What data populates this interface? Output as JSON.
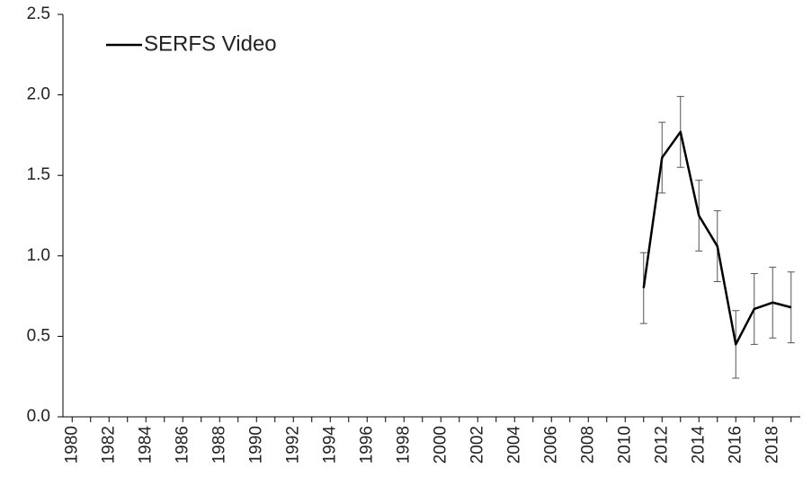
{
  "chart_data": {
    "type": "line",
    "categories": [
      "1980",
      null,
      "1982",
      null,
      "1984",
      null,
      "1986",
      null,
      "1988",
      null,
      "1990",
      null,
      "1992",
      null,
      "1994",
      null,
      "1996",
      null,
      "1998",
      null,
      "2000",
      null,
      "2002",
      null,
      "2004",
      null,
      "2006",
      null,
      "2008",
      null,
      "2010",
      null,
      "2012",
      null,
      "2014",
      null,
      "2016",
      null,
      "2018",
      null
    ],
    "series": [
      {
        "name": "SERFS Video",
        "color": "#000000",
        "values": [
          null,
          null,
          null,
          null,
          null,
          null,
          null,
          null,
          null,
          null,
          null,
          null,
          null,
          null,
          null,
          null,
          null,
          null,
          null,
          null,
          null,
          null,
          null,
          null,
          null,
          null,
          null,
          null,
          null,
          null,
          null,
          0.8,
          1.61,
          1.77,
          1.25,
          1.06,
          0.45,
          0.67,
          0.71,
          0.68
        ],
        "errors": [
          null,
          null,
          null,
          null,
          null,
          null,
          null,
          null,
          null,
          null,
          null,
          null,
          null,
          null,
          null,
          null,
          null,
          null,
          null,
          null,
          null,
          null,
          null,
          null,
          null,
          null,
          null,
          null,
          null,
          null,
          null,
          0.22,
          0.22,
          0.22,
          0.22,
          0.22,
          0.21,
          0.22,
          0.22,
          0.22
        ]
      }
    ],
    "ylim": [
      0,
      2.5
    ],
    "yticks": [
      {
        "value": 0,
        "label": "0.0"
      },
      0.5,
      {
        "value": 1,
        "label": "1.0"
      },
      1.5,
      {
        "value": 2,
        "label": "2.0"
      },
      2.5
    ],
    "legend": "top-left"
  }
}
